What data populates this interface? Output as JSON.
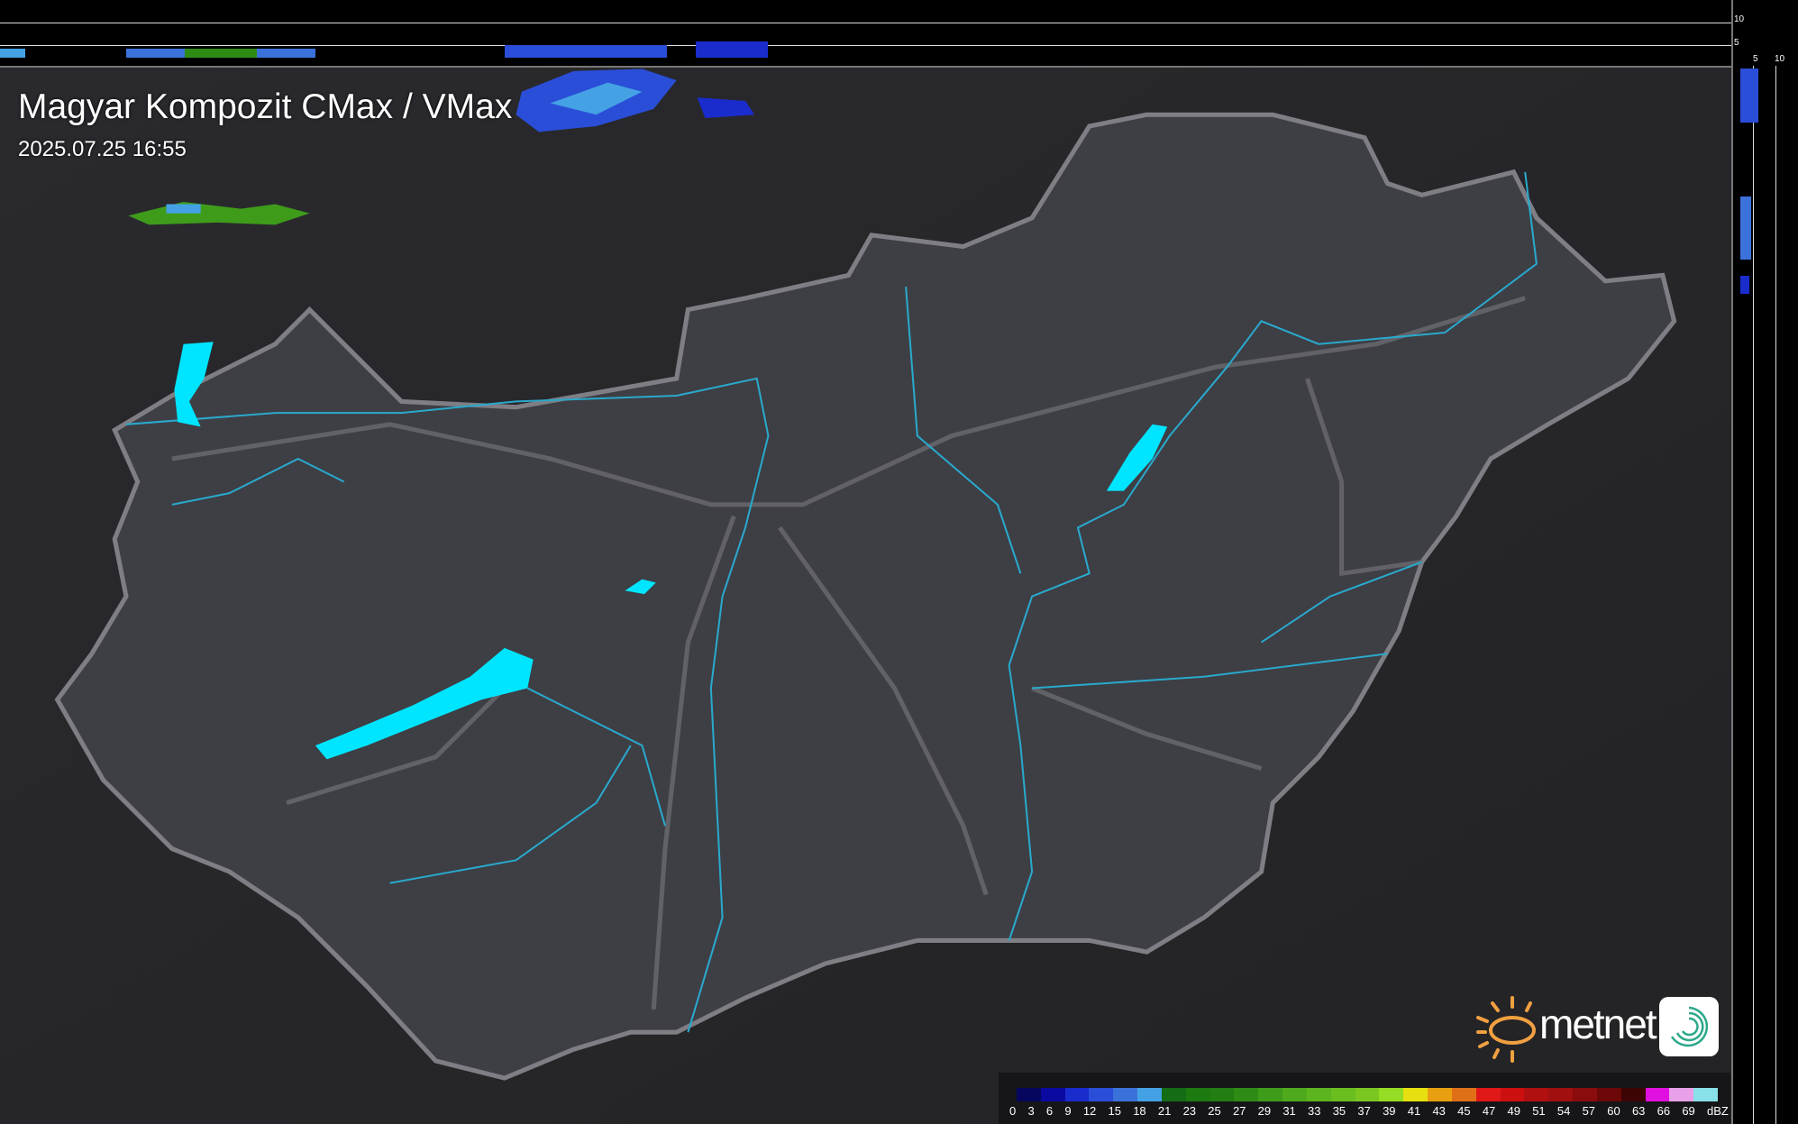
{
  "header": {
    "title": "Magyar Kompozit CMax / VMax",
    "timestamp": "2025.07.25 16:55"
  },
  "strips": {
    "top_axis": [
      "10",
      "5"
    ],
    "right_axis": [
      "5",
      "10"
    ]
  },
  "legend": {
    "unit": "dBZ",
    "labels": [
      "0",
      "3",
      "6",
      "9",
      "12",
      "15",
      "18",
      "21",
      "23",
      "25",
      "27",
      "29",
      "31",
      "33",
      "35",
      "37",
      "39",
      "41",
      "43",
      "45",
      "47",
      "49",
      "51",
      "54",
      "57",
      "60",
      "63",
      "66",
      "69"
    ],
    "colors": [
      "#06065e",
      "#0a0aa0",
      "#1a2ccc",
      "#2a4ed8",
      "#3a72da",
      "#44a2e4",
      "#146c14",
      "#1c7a10",
      "#227e12",
      "#2e8c16",
      "#3e9c1a",
      "#4eaa1c",
      "#5cb41e",
      "#6abe20",
      "#7cc622",
      "#96dc24",
      "#e6e010",
      "#e8a010",
      "#e07018",
      "#e01818",
      "#cc1010",
      "#b01010",
      "#a01010",
      "#8a0c0c",
      "#6c0808",
      "#3c0404",
      "#e010e0",
      "#e8a0e8",
      "#88e0e8"
    ]
  },
  "brand": {
    "name": "metnet",
    "sun_color": "#f0a040",
    "icon_color": "#2aa88a"
  },
  "map": {
    "land_color": "#3c3c42",
    "border_color": "#7a7a80",
    "river_color": "#29a9cc",
    "lake_color": "#00e5ff"
  }
}
